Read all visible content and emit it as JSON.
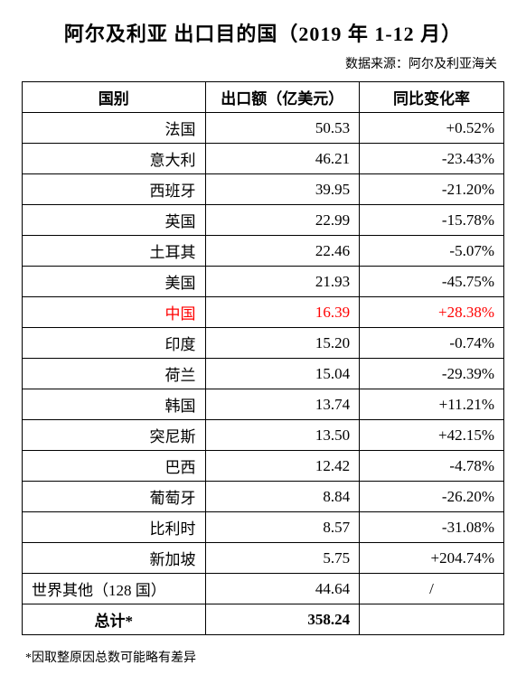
{
  "title": "阿尔及利亚 出口目的国（2019 年 1-12 月）",
  "source": "数据来源：阿尔及利亚海关",
  "columns": [
    "国别",
    "出口额（亿美元）",
    "同比变化率"
  ],
  "rows": [
    {
      "country": "法国",
      "value": "50.53",
      "change": "+0.52%",
      "highlight": false
    },
    {
      "country": "意大利",
      "value": "46.21",
      "change": "-23.43%",
      "highlight": false
    },
    {
      "country": "西班牙",
      "value": "39.95",
      "change": "-21.20%",
      "highlight": false
    },
    {
      "country": "英国",
      "value": "22.99",
      "change": "-15.78%",
      "highlight": false
    },
    {
      "country": "土耳其",
      "value": "22.46",
      "change": "-5.07%",
      "highlight": false
    },
    {
      "country": "美国",
      "value": "21.93",
      "change": "-45.75%",
      "highlight": false
    },
    {
      "country": "中国",
      "value": "16.39",
      "change": "+28.38%",
      "highlight": true
    },
    {
      "country": "印度",
      "value": "15.20",
      "change": "-0.74%",
      "highlight": false
    },
    {
      "country": "荷兰",
      "value": "15.04",
      "change": "-29.39%",
      "highlight": false
    },
    {
      "country": "韩国",
      "value": "13.74",
      "change": "+11.21%",
      "highlight": false
    },
    {
      "country": "突尼斯",
      "value": "13.50",
      "change": "+42.15%",
      "highlight": false
    },
    {
      "country": "巴西",
      "value": "12.42",
      "change": "-4.78%",
      "highlight": false
    },
    {
      "country": "葡萄牙",
      "value": "8.84",
      "change": "-26.20%",
      "highlight": false
    },
    {
      "country": "比利时",
      "value": "8.57",
      "change": "-31.08%",
      "highlight": false
    },
    {
      "country": "新加坡",
      "value": "5.75",
      "change": "+204.74%",
      "highlight": false
    }
  ],
  "other_row": {
    "country": "世界其他（128 国）",
    "value": "44.64",
    "change": "/"
  },
  "total_row": {
    "label": "总计*",
    "value": "358.24",
    "change": ""
  },
  "footnote": "*因取整原因总数可能略有差异"
}
